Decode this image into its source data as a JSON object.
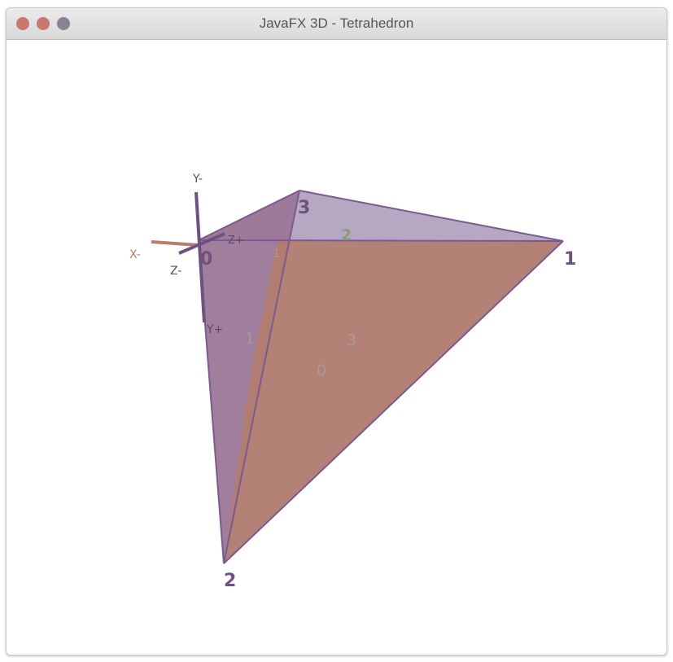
{
  "window": {
    "title": "JavaFX 3D - Tetrahedron"
  },
  "colors": {
    "face_front": "#b27d72",
    "face_left": "#9c7797",
    "face_top": "#b2a3c0",
    "edge": "#7a5a90",
    "x_axis": "#b87d6c",
    "y_axis": "#6d527f",
    "z_axis": "#6d527f"
  },
  "axes": {
    "x_minus": "X-",
    "y_minus": "Y-",
    "y_plus": "Y+",
    "z_minus": "Z-",
    "z_plus": "Z+"
  },
  "vertex_labels": [
    "0",
    "1",
    "2",
    "3"
  ],
  "face_labels": [
    "0",
    "1",
    "2",
    "3"
  ],
  "hidden_marker": "1"
}
